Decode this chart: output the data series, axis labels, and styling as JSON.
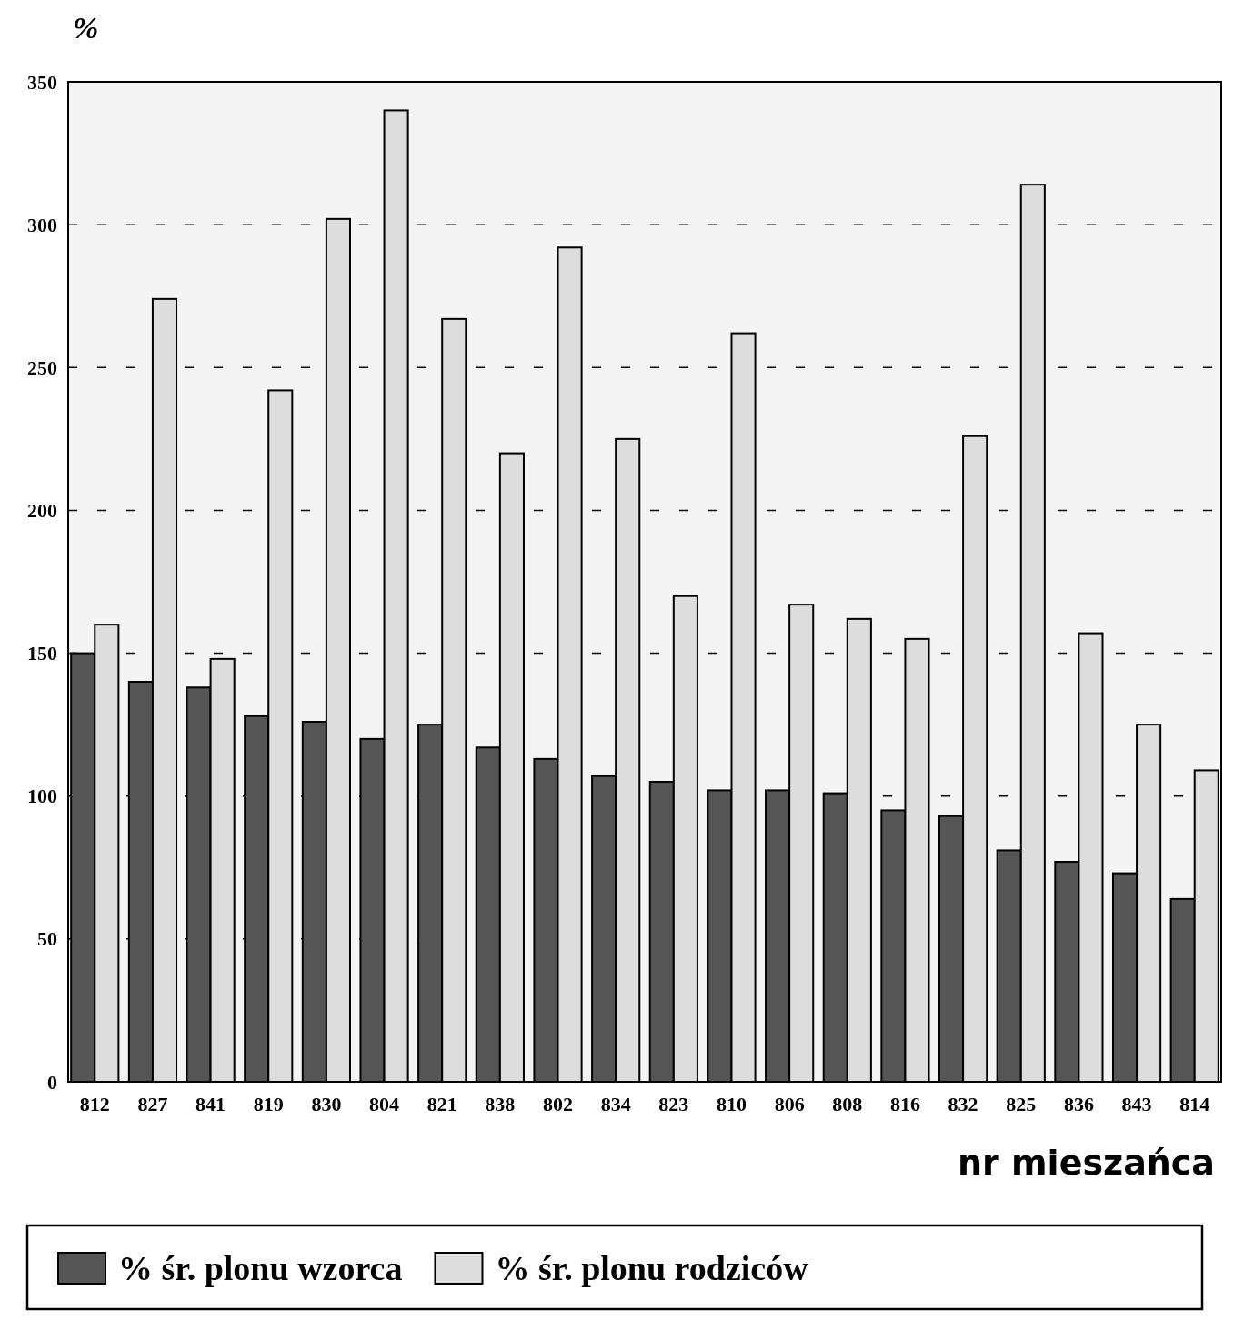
{
  "chart_data": {
    "type": "bar",
    "xlabel": "nr mieszańca",
    "ylabel": "%",
    "categories": [
      "812",
      "827",
      "841",
      "819",
      "830",
      "804",
      "821",
      "838",
      "802",
      "834",
      "823",
      "810",
      "806",
      "808",
      "816",
      "832",
      "825",
      "836",
      "843",
      "814"
    ],
    "series": [
      {
        "name": "% śr. plonu wzorca",
        "color": "#555555",
        "values": [
          150,
          140,
          138,
          128,
          126,
          120,
          125,
          117,
          113,
          107,
          105,
          102,
          102,
          101,
          95,
          93,
          81,
          77,
          73,
          64
        ]
      },
      {
        "name": "% śr. plonu rodziców",
        "color": "#dddddd",
        "values": [
          160,
          274,
          148,
          242,
          302,
          340,
          267,
          220,
          292,
          225,
          170,
          262,
          167,
          162,
          155,
          226,
          314,
          157,
          125,
          109
        ]
      }
    ],
    "ylim": [
      0,
      350
    ],
    "yticks": [
      0,
      50,
      100,
      150,
      200,
      250,
      300,
      350
    ],
    "grid": "y",
    "legend": "bottom"
  }
}
